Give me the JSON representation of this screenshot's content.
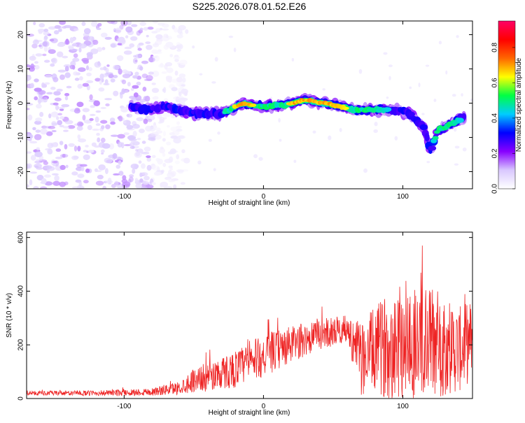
{
  "title": "S225.2026.078.01.52.E26",
  "colors": {
    "snr_line": "#ee2222",
    "frame": "#000000",
    "colorbar": [
      "#ffffff",
      "#d9c8ff",
      "#8800ff",
      "#0000ff",
      "#00ccff",
      "#00ff44",
      "#ffff00",
      "#ff6600",
      "#ff0000",
      "#ff0066"
    ]
  },
  "chart_data": [
    {
      "id": "spectrogram",
      "type": "heatmap",
      "xlabel": "Height of straight line (km)",
      "ylabel": "Frequency (Hz)",
      "xlim": [
        -170,
        150
      ],
      "ylim": [
        -25,
        24
      ],
      "xticks": [
        -100,
        0,
        100
      ],
      "xtick_labels": [
        "-100",
        "0",
        "100"
      ],
      "yticks": [
        20,
        10,
        0,
        -10,
        -20
      ],
      "ytick_labels": [
        "20",
        "10",
        "0",
        "-10",
        "-20"
      ],
      "colorbar": {
        "label": "Normalized spectral amplitude",
        "range": [
          0.0,
          0.95
        ],
        "ticks": [
          0.0,
          0.2,
          0.4,
          0.6,
          0.8
        ],
        "tick_labels": [
          "0.0",
          "0.2",
          "0.4",
          "0.6",
          "0.8"
        ]
      },
      "ridge": {
        "x": [
          -95,
          -85,
          -70,
          -50,
          -30,
          -15,
          0,
          15,
          30,
          50,
          65,
          80,
          95,
          105,
          115,
          120,
          125,
          135,
          145
        ],
        "y": [
          -1,
          -2,
          -1,
          -3,
          -3,
          0,
          -1,
          -0.5,
          1,
          -0.5,
          -2,
          -2,
          -2,
          -3,
          -7,
          -14,
          -8,
          -6,
          -4
        ],
        "peak_amplitude": [
          0.3,
          0.3,
          0.35,
          0.35,
          0.4,
          0.8,
          0.5,
          0.6,
          0.85,
          0.7,
          0.6,
          0.5,
          0.4,
          0.4,
          0.3,
          0.35,
          0.55,
          0.5,
          0.4
        ]
      },
      "noise_region": {
        "x_from": -170,
        "x_to": -80,
        "amplitude_range": [
          0.05,
          0.15
        ]
      }
    },
    {
      "id": "snr",
      "type": "line",
      "xlabel": "Height of straight line (km)",
      "ylabel": "SNR (10 * v/v)",
      "xlim": [
        -170,
        150
      ],
      "ylim": [
        0,
        620
      ],
      "xticks": [
        -100,
        0,
        100
      ],
      "xtick_labels": [
        "-100",
        "0",
        "100"
      ],
      "yticks": [
        0,
        200,
        400,
        600
      ],
      "ytick_labels": [
        "0",
        "200",
        "400",
        "600"
      ],
      "envelope": {
        "x": [
          -170,
          -120,
          -80,
          -60,
          -50,
          -40,
          -20,
          0,
          20,
          40,
          60,
          65,
          70,
          80,
          90,
          100,
          110,
          120,
          130,
          140,
          150
        ],
        "mean": [
          20,
          20,
          25,
          40,
          70,
          80,
          110,
          160,
          200,
          240,
          260,
          200,
          150,
          180,
          200,
          230,
          200,
          210,
          200,
          180,
          220
        ],
        "amplitude": [
          8,
          10,
          15,
          25,
          45,
          55,
          70,
          80,
          70,
          60,
          50,
          90,
          140,
          160,
          200,
          240,
          230,
          220,
          190,
          160,
          150
        ]
      }
    }
  ]
}
